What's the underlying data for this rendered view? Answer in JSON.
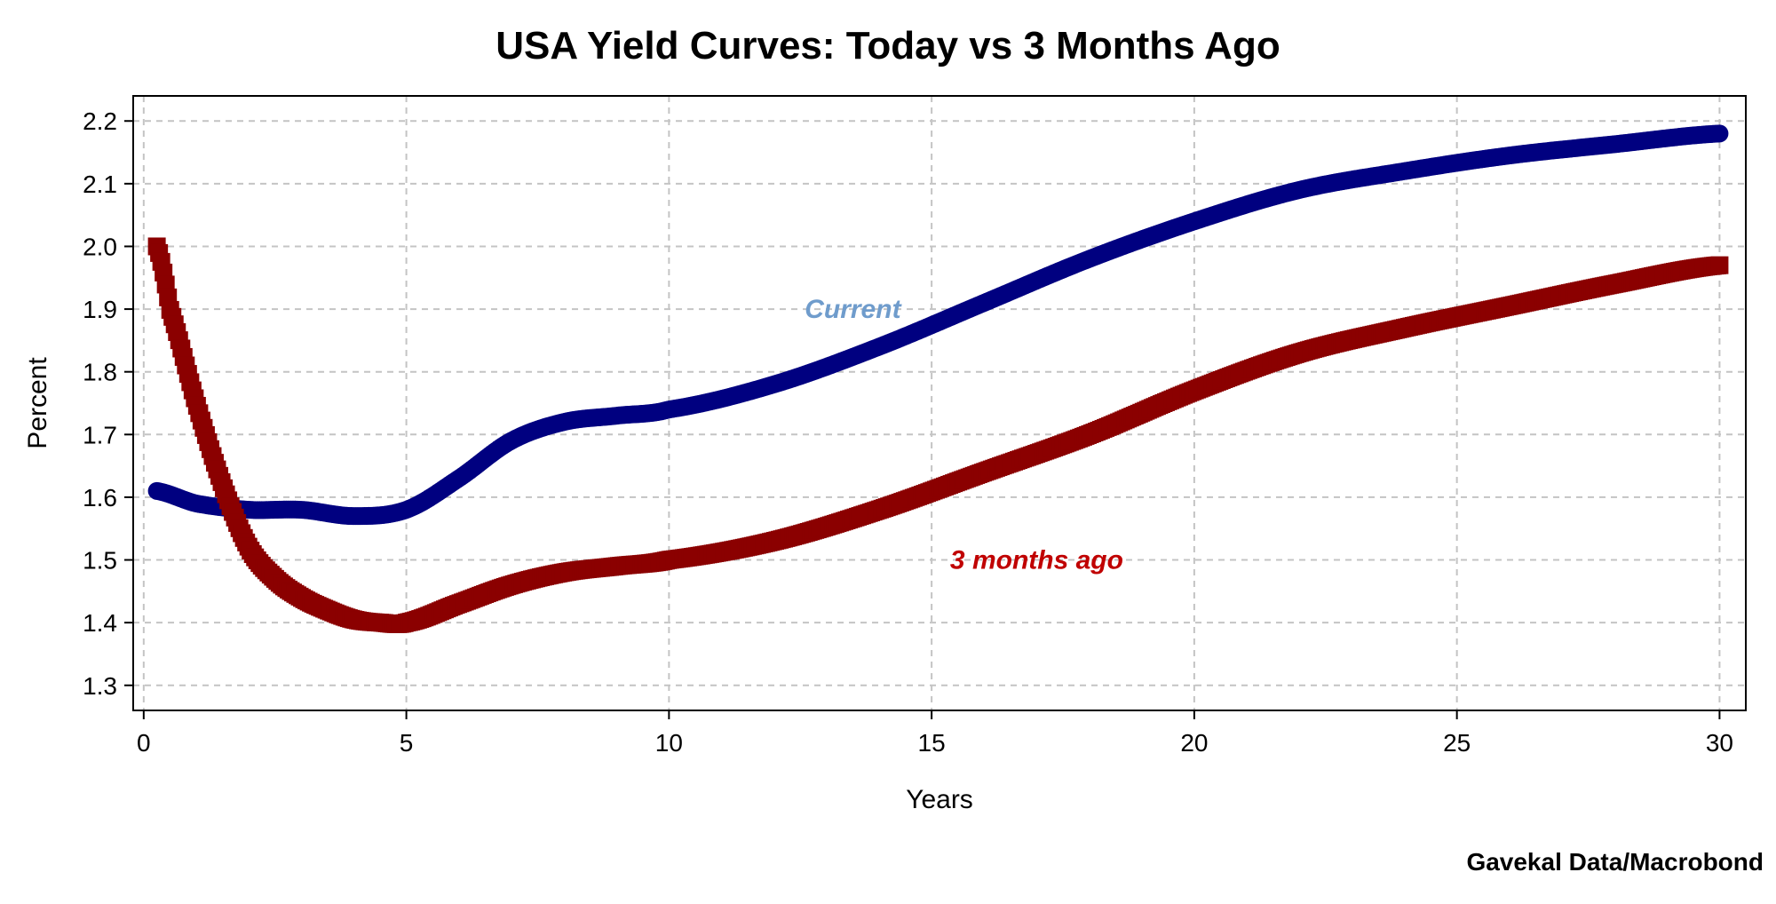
{
  "chart_data": {
    "type": "line",
    "title": "USA Yield Curves: Today vs 3 Months Ago",
    "xlabel": "Years",
    "ylabel": "Percent",
    "xlim": [
      -0.2,
      30.5
    ],
    "ylim": [
      1.26,
      2.24
    ],
    "xticks": [
      "0",
      "5",
      "10",
      "15",
      "20",
      "25",
      "30"
    ],
    "yticks": [
      "1.3",
      "1.4",
      "1.5",
      "1.6",
      "1.7",
      "1.8",
      "1.9",
      "2.0",
      "2.1",
      "2.2"
    ],
    "grid": true,
    "source": "Gavekal Data/Macrobond",
    "series": [
      {
        "name": "Current",
        "color": "#000080",
        "label_color": "#6f9ccc",
        "marker": "circle",
        "x": [
          0.25,
          1,
          2,
          3,
          4,
          5,
          6,
          7,
          8,
          9,
          10,
          12,
          14,
          16,
          18,
          20,
          22,
          24,
          26,
          28,
          30
        ],
        "y": [
          1.61,
          1.59,
          1.58,
          1.58,
          1.57,
          1.58,
          1.63,
          1.69,
          1.72,
          1.73,
          1.74,
          1.78,
          1.84,
          1.91,
          1.98,
          2.04,
          2.09,
          2.12,
          2.145,
          2.163,
          2.18
        ]
      },
      {
        "name": "3 months ago",
        "color": "#8b0000",
        "label_color": "#c00000",
        "marker": "square",
        "x": [
          0.25,
          0.5,
          1,
          1.5,
          2,
          2.5,
          3,
          3.5,
          4,
          4.5,
          5,
          6,
          7,
          8,
          9,
          10,
          12,
          14,
          16,
          18,
          20,
          22,
          24,
          26,
          28,
          30
        ],
        "y": [
          2.0,
          1.9,
          1.75,
          1.62,
          1.52,
          1.47,
          1.44,
          1.42,
          1.405,
          1.4,
          1.4,
          1.43,
          1.46,
          1.48,
          1.49,
          1.5,
          1.53,
          1.58,
          1.64,
          1.7,
          1.77,
          1.83,
          1.87,
          1.905,
          1.94,
          1.97
        ]
      }
    ],
    "annotations": [
      {
        "text": "Current",
        "series": "Current",
        "x": 13.5,
        "y": 1.9
      },
      {
        "text": "3 months ago",
        "series": "3 months ago",
        "x": 17,
        "y": 1.5
      }
    ]
  }
}
